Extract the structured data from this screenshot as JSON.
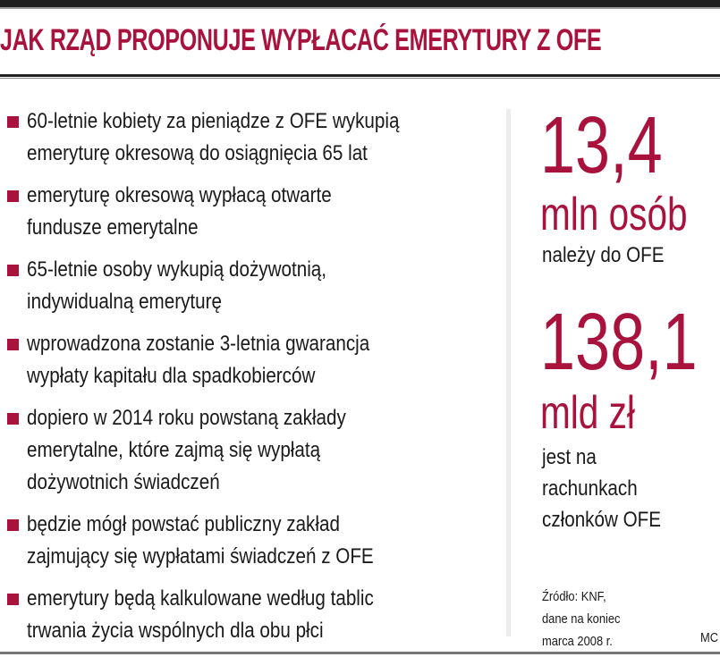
{
  "title": "JAK RZĄD PROPONUJE WYPŁACAĆ EMERYTURY Z OFE",
  "accent_color": "#a8123c",
  "items": [
    {
      "lines": [
        "60-letnie kobiety za pieniądze z OFE wykupią",
        "emeryturę okresową do osiągnięcia 65 lat"
      ]
    },
    {
      "lines": [
        "emeryturę okresową wypłacą otwarte",
        "fundusze emerytalne"
      ]
    },
    {
      "lines": [
        "65-letnie osoby wykupią dożywotnią,",
        "indywidualną emeryturę"
      ]
    },
    {
      "lines": [
        "wprowadzona zostanie 3-letnia gwarancja",
        "wypłaty kapitału dla spadkobierców"
      ]
    },
    {
      "lines": [
        "dopiero w 2014 roku powstaną zakłady",
        "emerytalne, które zajmą się wypłatą",
        "dożywotnich świadczeń"
      ]
    },
    {
      "lines": [
        "będzie mógł powstać publiczny zakład",
        "zajmujący się wypłatami świadczeń z OFE"
      ]
    },
    {
      "lines": [
        "emerytury będą kalkulowane według tablic",
        "trwania życia wspólnych dla obu płci"
      ]
    }
  ],
  "stats": [
    {
      "value": "13,4",
      "unit": "mln osób",
      "caption": [
        "należy do OFE"
      ]
    },
    {
      "value": "138,1",
      "unit": "mld zł",
      "caption": [
        "jest na",
        "rachunkach",
        "członków OFE"
      ]
    }
  ],
  "source": [
    "Źródło: KNF,",
    "dane na koniec",
    "marca 2008 r."
  ],
  "credit": "MC"
}
